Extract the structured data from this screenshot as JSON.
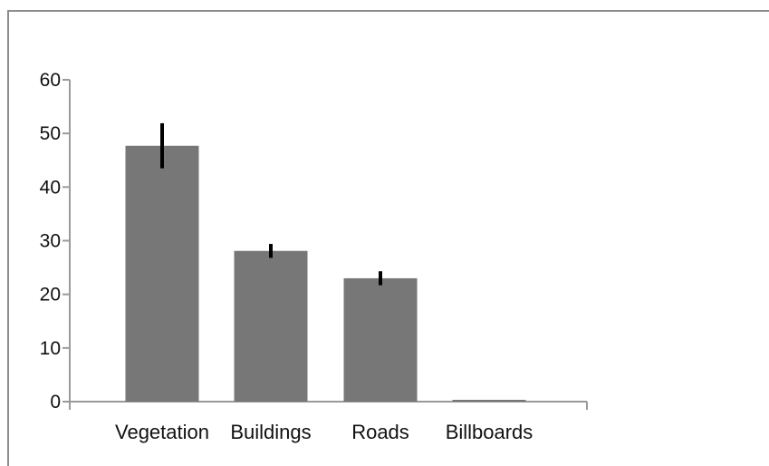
{
  "chart_data": {
    "type": "bar",
    "title": "",
    "xlabel": "",
    "ylabel": "",
    "categories": [
      "Vegetation",
      "Buildings",
      "Roads",
      "Billboards"
    ],
    "values": [
      47.7,
      28.1,
      23.0,
      0.3
    ],
    "error": [
      4.2,
      1.3,
      1.3,
      0
    ],
    "ylim": [
      0,
      60
    ],
    "yticks": [
      0,
      10,
      20,
      30,
      40,
      50,
      60
    ],
    "grid": false,
    "colors": {
      "bar": "#777777",
      "error_bar": "#000000",
      "axis": "#9a9a9a"
    }
  }
}
